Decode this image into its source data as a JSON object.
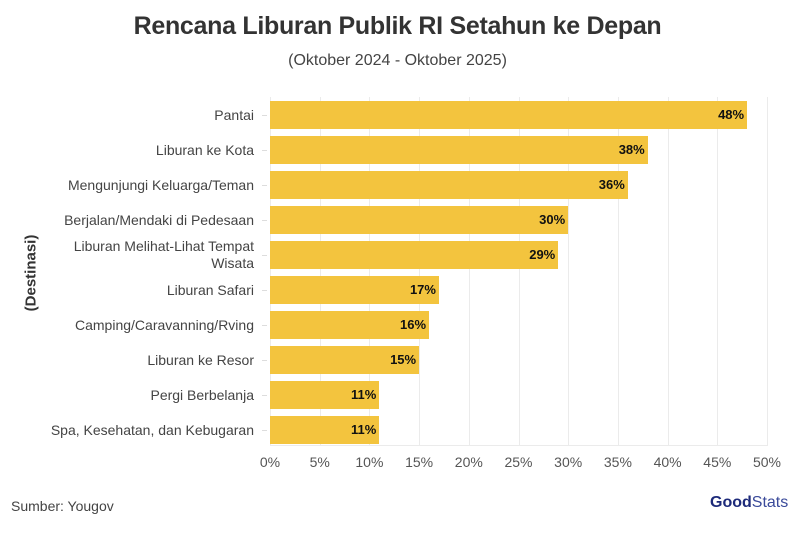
{
  "header": {
    "title": "Rencana Liburan Publik RI Setahun ke Depan",
    "subtitle": "(Oktober 2024 - Oktober 2025)"
  },
  "footer": {
    "source": "Sumber: Yougov",
    "logo_bold": "Good",
    "logo_light": "Stats"
  },
  "colors": {
    "bar": "#f3c43e",
    "grid": "#ebebeb",
    "text": "#444444"
  },
  "chart_data": {
    "type": "bar",
    "orientation": "horizontal",
    "title": "Rencana Liburan Publik RI Setahun ke Depan",
    "subtitle": "(Oktober 2024 - Oktober 2025)",
    "xlabel": "",
    "ylabel": "(Destinasi)",
    "xlim": [
      0,
      50
    ],
    "x_ticks": [
      "0%",
      "5%",
      "10%",
      "15%",
      "20%",
      "25%",
      "30%",
      "35%",
      "40%",
      "45%",
      "50%"
    ],
    "grid": true,
    "legend": null,
    "categories": [
      "Pantai",
      "Liburan ke Kota",
      "Mengunjungi Keluarga/Teman",
      "Berjalan/Mendaki di Pedesaan",
      "Liburan Melihat-Lihat Tempat Wisata",
      "Liburan Safari",
      "Camping/Caravanning/Rving",
      "Liburan ke Resor",
      "Pergi Berbelanja",
      "Spa, Kesehatan, dan Kebugaran"
    ],
    "values": [
      48,
      38,
      36,
      30,
      29,
      17,
      16,
      15,
      11,
      11
    ],
    "value_labels": [
      "48%",
      "38%",
      "36%",
      "30%",
      "29%",
      "17%",
      "16%",
      "15%",
      "11%",
      "11%"
    ],
    "source": "Sumber: Yougov"
  },
  "category_display": [
    [
      "Pantai"
    ],
    [
      "Liburan ke Kota"
    ],
    [
      "Mengunjungi Keluarga/Teman"
    ],
    [
      "Berjalan/Mendaki di Pedesaan"
    ],
    [
      "Liburan Melihat-Lihat Tempat",
      "Wisata"
    ],
    [
      "Liburan Safari"
    ],
    [
      "Camping/Caravanning/Rving"
    ],
    [
      "Liburan ke Resor"
    ],
    [
      "Pergi Berbelanja"
    ],
    [
      "Spa, Kesehatan, dan Kebugaran"
    ]
  ]
}
